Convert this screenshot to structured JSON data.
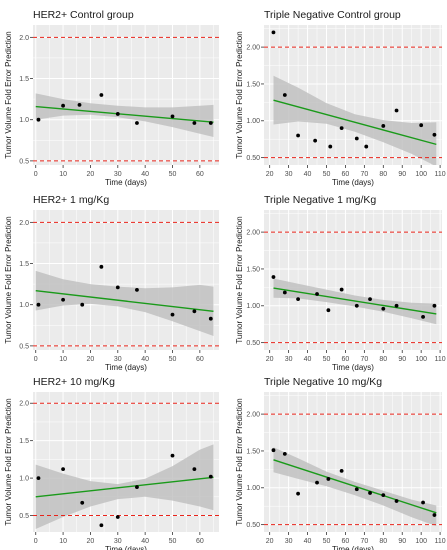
{
  "figure": {
    "ylabel": "Tumor Volume Fold Error Prediction",
    "xlabel": "Time (days)"
  },
  "colors": {
    "panel_bg": "#ebebeb",
    "grid": "#ffffff",
    "band": "#bdbdbd",
    "fit_line": "#1a9a1a",
    "threshold": "#e8231a",
    "points": "#000000",
    "text": "#1a1a1a"
  },
  "chart_data": [
    {
      "type": "scatter",
      "title": "HER2+ Control group",
      "xlabel": "Time (days)",
      "ylabel": "Tumor Volume Fold Error Prediction",
      "xlim": [
        -1,
        67
      ],
      "ylim": [
        0.45,
        2.15
      ],
      "xticks": [
        0,
        10,
        20,
        30,
        40,
        50,
        60
      ],
      "yticks": [
        0.5,
        1.0,
        1.5,
        2.0
      ],
      "ytick_labels": [
        "0.5",
        "1.0",
        "1.5",
        "2.0"
      ],
      "thresholds": [
        0.5,
        2.0
      ],
      "grid": true,
      "points": [
        [
          1,
          1.0
        ],
        [
          10,
          1.17
        ],
        [
          16,
          1.18
        ],
        [
          24,
          1.3
        ],
        [
          30,
          1.07
        ],
        [
          37,
          0.96
        ],
        [
          50,
          1.04
        ],
        [
          58,
          0.96
        ],
        [
          64,
          0.96
        ]
      ],
      "fit": {
        "x": [
          0,
          65
        ],
        "y": [
          1.16,
          0.97
        ]
      },
      "band": {
        "x": [
          0,
          10,
          20,
          30,
          40,
          50,
          60,
          65
        ],
        "lower": [
          1.0,
          1.05,
          1.06,
          1.03,
          0.98,
          0.91,
          0.83,
          0.79
        ],
        "upper": [
          1.32,
          1.25,
          1.2,
          1.17,
          1.15,
          1.15,
          1.17,
          1.18
        ]
      }
    },
    {
      "type": "scatter",
      "title": "Triple Negative Control group",
      "xlabel": "Time (days)",
      "ylabel": "Tumor Volume Fold Error Prediction",
      "xlim": [
        17,
        111
      ],
      "ylim": [
        0.4,
        2.3
      ],
      "xticks": [
        20,
        30,
        40,
        50,
        60,
        70,
        80,
        90,
        100,
        110
      ],
      "yticks": [
        0.5,
        1.0,
        1.5,
        2.0
      ],
      "ytick_labels": [
        "0.50",
        "1.00",
        "1.50",
        "2.00"
      ],
      "thresholds": [
        0.5,
        2.0
      ],
      "grid": true,
      "points": [
        [
          22,
          2.2
        ],
        [
          28,
          1.35
        ],
        [
          35,
          0.8
        ],
        [
          44,
          0.73
        ],
        [
          52,
          0.65
        ],
        [
          58,
          0.9
        ],
        [
          66,
          0.76
        ],
        [
          71,
          0.65
        ],
        [
          80,
          0.93
        ],
        [
          87,
          1.14
        ],
        [
          100,
          0.94
        ],
        [
          107,
          0.81
        ]
      ],
      "fit": {
        "x": [
          22,
          108
        ],
        "y": [
          1.28,
          0.68
        ]
      },
      "band": {
        "x": [
          22,
          35,
          50,
          65,
          80,
          95,
          108
        ],
        "lower": [
          0.95,
          0.99,
          0.96,
          0.85,
          0.71,
          0.55,
          0.38
        ],
        "upper": [
          1.61,
          1.45,
          1.24,
          1.09,
          1.01,
          0.97,
          0.98
        ]
      }
    },
    {
      "type": "scatter",
      "title": "HER2+ 1 mg/Kg",
      "xlabel": "Time (days)",
      "ylabel": "Tumor Volume Fold Error Prediction",
      "xlim": [
        -1,
        67
      ],
      "ylim": [
        0.45,
        2.15
      ],
      "xticks": [
        0,
        10,
        20,
        30,
        40,
        50,
        60
      ],
      "yticks": [
        0.5,
        1.0,
        1.5,
        2.0
      ],
      "ytick_labels": [
        "0.5",
        "1.0",
        "1.5",
        "2.0"
      ],
      "thresholds": [
        0.5,
        2.0
      ],
      "grid": true,
      "points": [
        [
          1,
          1.0
        ],
        [
          10,
          1.06
        ],
        [
          17,
          1.0
        ],
        [
          24,
          1.46
        ],
        [
          30,
          1.21
        ],
        [
          37,
          1.18
        ],
        [
          50,
          0.88
        ],
        [
          58,
          0.92
        ],
        [
          64,
          0.83
        ]
      ],
      "fit": {
        "x": [
          0,
          65
        ],
        "y": [
          1.17,
          0.92
        ]
      },
      "band": {
        "x": [
          0,
          10,
          20,
          30,
          40,
          50,
          60,
          65
        ],
        "lower": [
          0.93,
          0.99,
          1.01,
          0.98,
          0.91,
          0.8,
          0.68,
          0.62
        ],
        "upper": [
          1.41,
          1.31,
          1.25,
          1.22,
          1.2,
          1.21,
          1.24,
          1.22
        ]
      }
    },
    {
      "type": "scatter",
      "title": "Triple Negative 1 mg/Kg",
      "xlabel": "Time (days)",
      "ylabel": "Tumor Volume Fold Error Prediction",
      "xlim": [
        17,
        111
      ],
      "ylim": [
        0.4,
        2.3
      ],
      "xticks": [
        20,
        30,
        40,
        50,
        60,
        70,
        80,
        90,
        100,
        110
      ],
      "yticks": [
        0.5,
        1.0,
        1.5,
        2.0
      ],
      "ytick_labels": [
        "0.50",
        "1.00",
        "1.50",
        "2.00"
      ],
      "thresholds": [
        0.5,
        2.0
      ],
      "grid": true,
      "points": [
        [
          22,
          1.39
        ],
        [
          28,
          1.18
        ],
        [
          35,
          1.09
        ],
        [
          45,
          1.16
        ],
        [
          51,
          0.94
        ],
        [
          58,
          1.22
        ],
        [
          66,
          1.0
        ],
        [
          73,
          1.09
        ],
        [
          80,
          0.96
        ],
        [
          87,
          1.0
        ],
        [
          101,
          0.85
        ],
        [
          107,
          1.0
        ]
      ],
      "fit": {
        "x": [
          22,
          108
        ],
        "y": [
          1.24,
          0.89
        ]
      },
      "band": {
        "x": [
          22,
          35,
          50,
          65,
          80,
          95,
          108
        ],
        "lower": [
          1.11,
          1.1,
          1.05,
          0.99,
          0.92,
          0.83,
          0.75
        ],
        "upper": [
          1.37,
          1.3,
          1.22,
          1.14,
          1.08,
          1.04,
          1.03
        ]
      }
    },
    {
      "type": "scatter",
      "title": "HER2+ 10 mg/Kg",
      "xlabel": "Time (days)",
      "ylabel": "Tumor Volume Fold Error Prediction",
      "xlim": [
        -1,
        67
      ],
      "ylim": [
        0.28,
        2.15
      ],
      "xticks": [
        0,
        10,
        20,
        30,
        40,
        50,
        60
      ],
      "yticks": [
        0.5,
        1.0,
        1.5,
        2.0
      ],
      "ytick_labels": [
        "0.5",
        "1.0",
        "1.5",
        "2.0"
      ],
      "thresholds": [
        0.5,
        2.0
      ],
      "grid": true,
      "points": [
        [
          1,
          1.0
        ],
        [
          10,
          1.12
        ],
        [
          17,
          0.67
        ],
        [
          24,
          0.37
        ],
        [
          30,
          0.48
        ],
        [
          37,
          0.88
        ],
        [
          50,
          1.3
        ],
        [
          58,
          1.12
        ],
        [
          64,
          1.02
        ]
      ],
      "fit": {
        "x": [
          0,
          65
        ],
        "y": [
          0.75,
          1.01
        ]
      },
      "band": {
        "x": [
          0,
          10,
          20,
          30,
          40,
          50,
          60,
          65
        ],
        "lower": [
          0.32,
          0.48,
          0.62,
          0.72,
          0.75,
          0.7,
          0.62,
          0.57
        ],
        "upper": [
          1.18,
          1.06,
          0.96,
          0.92,
          0.99,
          1.16,
          1.38,
          1.45
        ]
      }
    },
    {
      "type": "scatter",
      "title": "Triple Negative 10 mg/Kg",
      "xlabel": "Time (days)",
      "ylabel": "Tumor Volume Fold Error Prediction",
      "xlim": [
        17,
        111
      ],
      "ylim": [
        0.4,
        2.3
      ],
      "xticks": [
        20,
        30,
        40,
        50,
        60,
        70,
        80,
        90,
        100,
        110
      ],
      "yticks": [
        0.5,
        1.0,
        1.5,
        2.0
      ],
      "ytick_labels": [
        "0.50",
        "1.00",
        "1.50",
        "2.00"
      ],
      "thresholds": [
        0.5,
        2.0
      ],
      "grid": true,
      "points": [
        [
          22,
          1.51
        ],
        [
          28,
          1.46
        ],
        [
          35,
          0.92
        ],
        [
          45,
          1.07
        ],
        [
          51,
          1.12
        ],
        [
          58,
          1.23
        ],
        [
          66,
          0.98
        ],
        [
          73,
          0.93
        ],
        [
          80,
          0.9
        ],
        [
          87,
          0.82
        ],
        [
          101,
          0.8
        ],
        [
          107,
          0.63
        ]
      ],
      "fit": {
        "x": [
          22,
          108
        ],
        "y": [
          1.38,
          0.66
        ]
      },
      "band": {
        "x": [
          22,
          35,
          50,
          65,
          80,
          95,
          108
        ],
        "lower": [
          1.21,
          1.12,
          1.02,
          0.9,
          0.76,
          0.6,
          0.48
        ],
        "upper": [
          1.55,
          1.4,
          1.22,
          1.08,
          0.96,
          0.84,
          0.76
        ]
      }
    }
  ]
}
